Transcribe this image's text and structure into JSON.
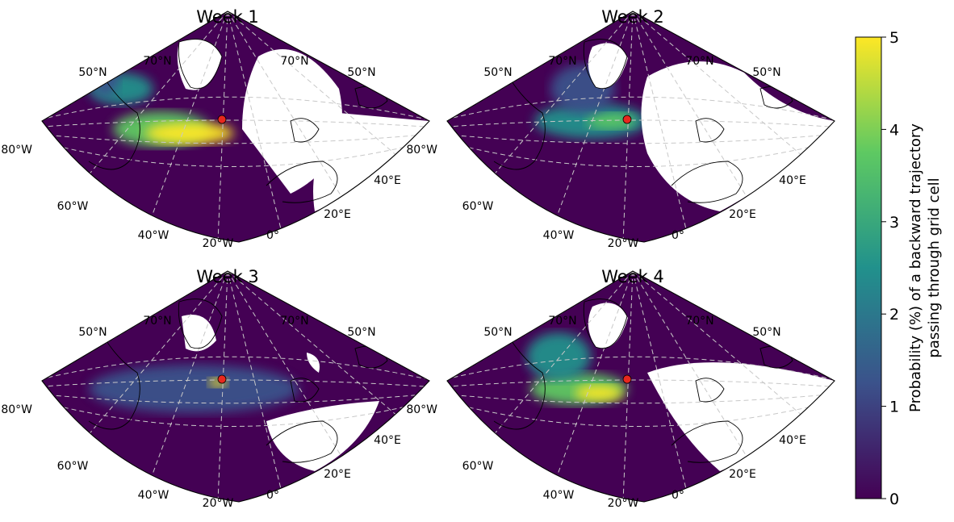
{
  "panels": [
    {
      "title": "Week 1",
      "lat_labels": [
        "70°N",
        "70°N",
        "50°N",
        "50°N"
      ],
      "lon_labels": [
        "80°W",
        "60°W",
        "40°W",
        "20°W",
        "0°",
        "20°E",
        "40°E"
      ],
      "source_marker": "red-dot"
    },
    {
      "title": "Week 2",
      "lat_labels": [
        "70°N",
        "70°N",
        "50°N",
        "50°N"
      ],
      "lon_labels": [
        "80°W",
        "60°W",
        "40°W",
        "20°W",
        "0°",
        "20°E",
        "40°E"
      ],
      "source_marker": "red-dot"
    },
    {
      "title": "Week 3",
      "lat_labels": [
        "70°N",
        "70°N",
        "50°N",
        "50°N"
      ],
      "lon_labels": [
        "80°W",
        "60°W",
        "40°W",
        "20°W",
        "0°",
        "20°E",
        "40°E"
      ],
      "source_marker": "red-dot"
    },
    {
      "title": "Week 4",
      "lat_labels": [
        "70°N",
        "70°N",
        "50°N",
        "50°N"
      ],
      "lon_labels": [
        "80°W",
        "60°W",
        "40°W",
        "20°W",
        "0°",
        "20°E",
        "40°E"
      ],
      "source_marker": "red-dot"
    }
  ],
  "colorbar": {
    "label_line1": "Probability (%) of a backward trajectory",
    "label_line2": "passing through grid cell",
    "ticks": [
      "0",
      "1",
      "2",
      "3",
      "4",
      "5"
    ],
    "range": [
      0,
      5
    ],
    "colormap": "viridis",
    "stops": [
      "#440154",
      "#3b528b",
      "#21918c",
      "#5ec962",
      "#fde725"
    ]
  },
  "colors": {
    "background_low": "#440154",
    "marker": "#e8281e",
    "graticule": "#c8c8c8",
    "coastline": "#000000"
  }
}
